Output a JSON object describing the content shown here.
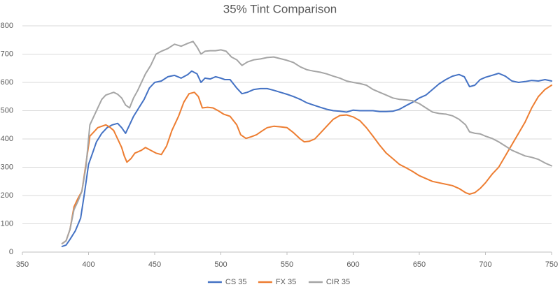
{
  "chart_data": {
    "type": "line",
    "title": "35% Tint Comparison",
    "xlabel": "",
    "ylabel": "",
    "xlim": [
      350,
      750
    ],
    "ylim": [
      0,
      800
    ],
    "x_ticks": [
      350,
      400,
      450,
      500,
      550,
      600,
      650,
      700,
      750
    ],
    "y_ticks": [
      0,
      100,
      200,
      300,
      400,
      500,
      600,
      700,
      800
    ],
    "grid": "horizontal",
    "legend_position": "bottom",
    "series": [
      {
        "name": "CS 35",
        "color": "#4472c4",
        "points": [
          [
            380,
            20
          ],
          [
            383,
            25
          ],
          [
            386,
            45
          ],
          [
            390,
            75
          ],
          [
            394,
            120
          ],
          [
            397,
            210
          ],
          [
            400,
            310
          ],
          [
            403,
            350
          ],
          [
            406,
            390
          ],
          [
            410,
            420
          ],
          [
            414,
            440
          ],
          [
            418,
            450
          ],
          [
            422,
            455
          ],
          [
            425,
            440
          ],
          [
            428,
            420
          ],
          [
            431,
            450
          ],
          [
            434,
            480
          ],
          [
            438,
            510
          ],
          [
            442,
            540
          ],
          [
            446,
            580
          ],
          [
            450,
            600
          ],
          [
            455,
            605
          ],
          [
            460,
            620
          ],
          [
            465,
            625
          ],
          [
            470,
            615
          ],
          [
            475,
            628
          ],
          [
            478,
            640
          ],
          [
            482,
            630
          ],
          [
            485,
            600
          ],
          [
            488,
            615
          ],
          [
            492,
            612
          ],
          [
            496,
            620
          ],
          [
            500,
            615
          ],
          [
            503,
            610
          ],
          [
            507,
            610
          ],
          [
            512,
            580
          ],
          [
            516,
            560
          ],
          [
            520,
            565
          ],
          [
            525,
            575
          ],
          [
            530,
            578
          ],
          [
            535,
            578
          ],
          [
            540,
            572
          ],
          [
            545,
            565
          ],
          [
            550,
            558
          ],
          [
            555,
            550
          ],
          [
            560,
            540
          ],
          [
            565,
            528
          ],
          [
            570,
            520
          ],
          [
            575,
            512
          ],
          [
            580,
            505
          ],
          [
            585,
            500
          ],
          [
            590,
            498
          ],
          [
            595,
            495
          ],
          [
            600,
            502
          ],
          [
            605,
            500
          ],
          [
            610,
            500
          ],
          [
            615,
            500
          ],
          [
            620,
            497
          ],
          [
            625,
            497
          ],
          [
            630,
            498
          ],
          [
            635,
            505
          ],
          [
            640,
            518
          ],
          [
            645,
            530
          ],
          [
            650,
            545
          ],
          [
            655,
            555
          ],
          [
            660,
            575
          ],
          [
            665,
            595
          ],
          [
            670,
            610
          ],
          [
            675,
            622
          ],
          [
            680,
            628
          ],
          [
            684,
            620
          ],
          [
            688,
            585
          ],
          [
            692,
            590
          ],
          [
            696,
            610
          ],
          [
            700,
            618
          ],
          [
            705,
            625
          ],
          [
            710,
            632
          ],
          [
            715,
            622
          ],
          [
            720,
            605
          ],
          [
            725,
            600
          ],
          [
            730,
            603
          ],
          [
            735,
            607
          ],
          [
            740,
            605
          ],
          [
            745,
            610
          ],
          [
            750,
            605
          ]
        ]
      },
      {
        "name": "FX 35",
        "color": "#ed7d31",
        "points": [
          [
            380,
            30
          ],
          [
            383,
            40
          ],
          [
            386,
            80
          ],
          [
            389,
            160
          ],
          [
            392,
            190
          ],
          [
            395,
            215
          ],
          [
            398,
            310
          ],
          [
            401,
            410
          ],
          [
            404,
            425
          ],
          [
            407,
            440
          ],
          [
            410,
            445
          ],
          [
            413,
            450
          ],
          [
            416,
            442
          ],
          [
            419,
            430
          ],
          [
            422,
            400
          ],
          [
            425,
            370
          ],
          [
            427,
            340
          ],
          [
            429,
            318
          ],
          [
            432,
            330
          ],
          [
            435,
            350
          ],
          [
            440,
            360
          ],
          [
            443,
            370
          ],
          [
            447,
            360
          ],
          [
            451,
            350
          ],
          [
            455,
            345
          ],
          [
            459,
            375
          ],
          [
            463,
            430
          ],
          [
            468,
            480
          ],
          [
            472,
            530
          ],
          [
            476,
            560
          ],
          [
            480,
            565
          ],
          [
            483,
            550
          ],
          [
            486,
            510
          ],
          [
            490,
            512
          ],
          [
            494,
            510
          ],
          [
            498,
            500
          ],
          [
            502,
            488
          ],
          [
            507,
            480
          ],
          [
            512,
            450
          ],
          [
            515,
            415
          ],
          [
            519,
            402
          ],
          [
            523,
            408
          ],
          [
            527,
            415
          ],
          [
            531,
            428
          ],
          [
            535,
            440
          ],
          [
            540,
            445
          ],
          [
            545,
            443
          ],
          [
            550,
            440
          ],
          [
            555,
            422
          ],
          [
            560,
            400
          ],
          [
            563,
            390
          ],
          [
            567,
            392
          ],
          [
            571,
            400
          ],
          [
            575,
            420
          ],
          [
            580,
            445
          ],
          [
            585,
            470
          ],
          [
            590,
            483
          ],
          [
            595,
            485
          ],
          [
            600,
            478
          ],
          [
            605,
            465
          ],
          [
            610,
            440
          ],
          [
            615,
            410
          ],
          [
            620,
            378
          ],
          [
            625,
            350
          ],
          [
            630,
            330
          ],
          [
            635,
            310
          ],
          [
            640,
            298
          ],
          [
            645,
            285
          ],
          [
            650,
            270
          ],
          [
            655,
            260
          ],
          [
            660,
            250
          ],
          [
            665,
            245
          ],
          [
            670,
            240
          ],
          [
            675,
            235
          ],
          [
            680,
            225
          ],
          [
            685,
            210
          ],
          [
            688,
            205
          ],
          [
            692,
            210
          ],
          [
            696,
            225
          ],
          [
            700,
            245
          ],
          [
            705,
            275
          ],
          [
            710,
            300
          ],
          [
            715,
            340
          ],
          [
            720,
            380
          ],
          [
            725,
            420
          ],
          [
            730,
            460
          ],
          [
            735,
            510
          ],
          [
            740,
            550
          ],
          [
            745,
            575
          ],
          [
            750,
            590
          ]
        ]
      },
      {
        "name": "CIR 35",
        "color": "#a5a5a5",
        "points": [
          [
            380,
            30
          ],
          [
            383,
            40
          ],
          [
            386,
            80
          ],
          [
            389,
            150
          ],
          [
            392,
            180
          ],
          [
            395,
            215
          ],
          [
            398,
            300
          ],
          [
            401,
            450
          ],
          [
            404,
            480
          ],
          [
            407,
            510
          ],
          [
            410,
            540
          ],
          [
            413,
            555
          ],
          [
            416,
            560
          ],
          [
            419,
            565
          ],
          [
            422,
            558
          ],
          [
            425,
            545
          ],
          [
            428,
            520
          ],
          [
            431,
            510
          ],
          [
            434,
            545
          ],
          [
            437,
            570
          ],
          [
            440,
            600
          ],
          [
            443,
            630
          ],
          [
            447,
            660
          ],
          [
            451,
            700
          ],
          [
            455,
            710
          ],
          [
            460,
            720
          ],
          [
            465,
            735
          ],
          [
            470,
            728
          ],
          [
            475,
            738
          ],
          [
            479,
            745
          ],
          [
            482,
            725
          ],
          [
            485,
            700
          ],
          [
            488,
            710
          ],
          [
            492,
            712
          ],
          [
            496,
            712
          ],
          [
            500,
            715
          ],
          [
            504,
            710
          ],
          [
            508,
            690
          ],
          [
            512,
            680
          ],
          [
            516,
            660
          ],
          [
            520,
            672
          ],
          [
            525,
            680
          ],
          [
            530,
            683
          ],
          [
            535,
            688
          ],
          [
            540,
            690
          ],
          [
            545,
            684
          ],
          [
            550,
            678
          ],
          [
            555,
            670
          ],
          [
            560,
            655
          ],
          [
            565,
            645
          ],
          [
            570,
            640
          ],
          [
            575,
            636
          ],
          [
            580,
            630
          ],
          [
            585,
            622
          ],
          [
            590,
            615
          ],
          [
            595,
            605
          ],
          [
            600,
            600
          ],
          [
            605,
            596
          ],
          [
            610,
            590
          ],
          [
            615,
            575
          ],
          [
            620,
            565
          ],
          [
            625,
            555
          ],
          [
            630,
            545
          ],
          [
            635,
            540
          ],
          [
            640,
            538
          ],
          [
            645,
            535
          ],
          [
            650,
            525
          ],
          [
            655,
            510
          ],
          [
            660,
            495
          ],
          [
            665,
            490
          ],
          [
            670,
            488
          ],
          [
            675,
            482
          ],
          [
            680,
            470
          ],
          [
            685,
            450
          ],
          [
            688,
            425
          ],
          [
            692,
            420
          ],
          [
            696,
            418
          ],
          [
            700,
            410
          ],
          [
            705,
            402
          ],
          [
            710,
            390
          ],
          [
            715,
            375
          ],
          [
            720,
            360
          ],
          [
            725,
            350
          ],
          [
            730,
            340
          ],
          [
            735,
            335
          ],
          [
            740,
            328
          ],
          [
            745,
            315
          ],
          [
            750,
            305
          ]
        ]
      }
    ]
  }
}
